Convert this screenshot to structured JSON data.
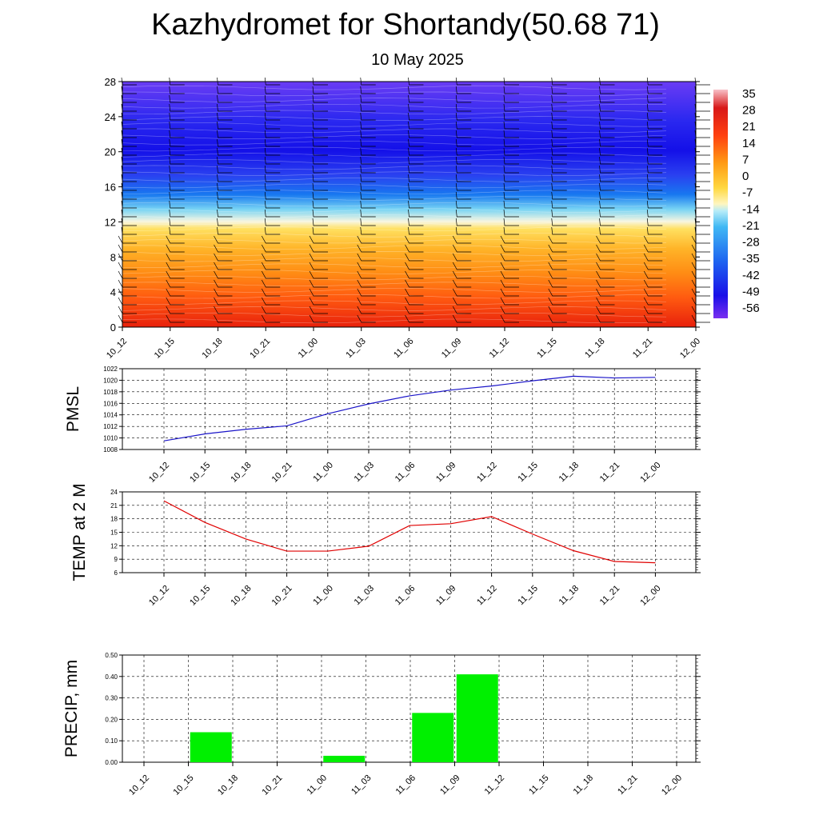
{
  "title": "Kazhydromet for Shortandy(50.68 71)",
  "subtitle": "10 May 2025",
  "chart_data": [
    {
      "type": "heatmap",
      "name": "vertical-temperature-section",
      "x_ticks": [
        "10_12",
        "10_15",
        "10_18",
        "10_21",
        "11_00",
        "11_03",
        "11_06",
        "11_09",
        "11_12",
        "11_15",
        "11_18",
        "11_21",
        "12_00"
      ],
      "y_ticks": [
        0,
        4,
        8,
        12,
        16,
        20,
        24,
        28
      ],
      "ylim": [
        0,
        28
      ],
      "colorbar_ticks": [
        35,
        28,
        21,
        14,
        7,
        0,
        -7,
        -14,
        -21,
        -28,
        -35,
        -42,
        -49,
        -56
      ],
      "colorbar_range": [
        -60,
        38
      ],
      "colors": {
        "warm_bottom": "#e8200c",
        "orange": "#ff8c14",
        "yellow": "#ffe060",
        "freezing_white": "#f8f6e0",
        "light_blue": "#78d4f4",
        "mid_blue": "#1878f0",
        "deep_blue": "#1410e8",
        "violet_top": "#6a3cf4"
      },
      "wind_barbs": true
    },
    {
      "type": "line",
      "name": "pmsl",
      "ylabel": "PMSL",
      "categories": [
        "10_12",
        "10_15",
        "10_18",
        "10_21",
        "11_00",
        "11_03",
        "11_06",
        "11_09",
        "11_12",
        "11_15",
        "11_18",
        "11_21",
        "12_00"
      ],
      "values": [
        1009.5,
        1010.7,
        1011.5,
        1012.1,
        1014.2,
        1015.9,
        1017.3,
        1018.3,
        1019.0,
        1019.9,
        1020.7,
        1020.4,
        1020.5
      ],
      "y_ticks": [
        1008,
        1010,
        1012,
        1014,
        1016,
        1018,
        1020,
        1022
      ],
      "ylim": [
        1008,
        1022
      ],
      "grid": true,
      "color": "#1a14c8"
    },
    {
      "type": "line",
      "name": "temp-2m",
      "ylabel": "TEMP at 2 M",
      "categories": [
        "10_12",
        "10_15",
        "10_18",
        "10_21",
        "11_00",
        "11_03",
        "11_06",
        "11_09",
        "11_12",
        "11_15",
        "11_18",
        "11_21",
        "12_00"
      ],
      "values": [
        22.0,
        17.2,
        13.5,
        10.8,
        10.8,
        11.9,
        16.5,
        16.9,
        18.5,
        14.6,
        10.9,
        8.5,
        8.2
      ],
      "y_ticks": [
        6,
        9,
        12,
        15,
        18,
        21,
        24
      ],
      "ylim": [
        6,
        24
      ],
      "grid": true,
      "color": "#e00000"
    },
    {
      "type": "bar",
      "name": "precip",
      "ylabel": "PRECIP, mm",
      "categories": [
        "10_12",
        "10_15",
        "10_18",
        "10_21",
        "11_00",
        "11_03",
        "11_06",
        "11_09",
        "11_12",
        "11_15",
        "11_18",
        "11_21",
        "12_00"
      ],
      "values": [
        0,
        0.14,
        0,
        0,
        0.03,
        0,
        0.23,
        0.41,
        0,
        0,
        0,
        0,
        0
      ],
      "y_ticks": [
        "0.00",
        "0.10",
        "0.20",
        "0.30",
        "0.40",
        "0.50"
      ],
      "ylim": [
        0,
        0.5
      ],
      "grid": true,
      "color": "#00f000"
    }
  ]
}
